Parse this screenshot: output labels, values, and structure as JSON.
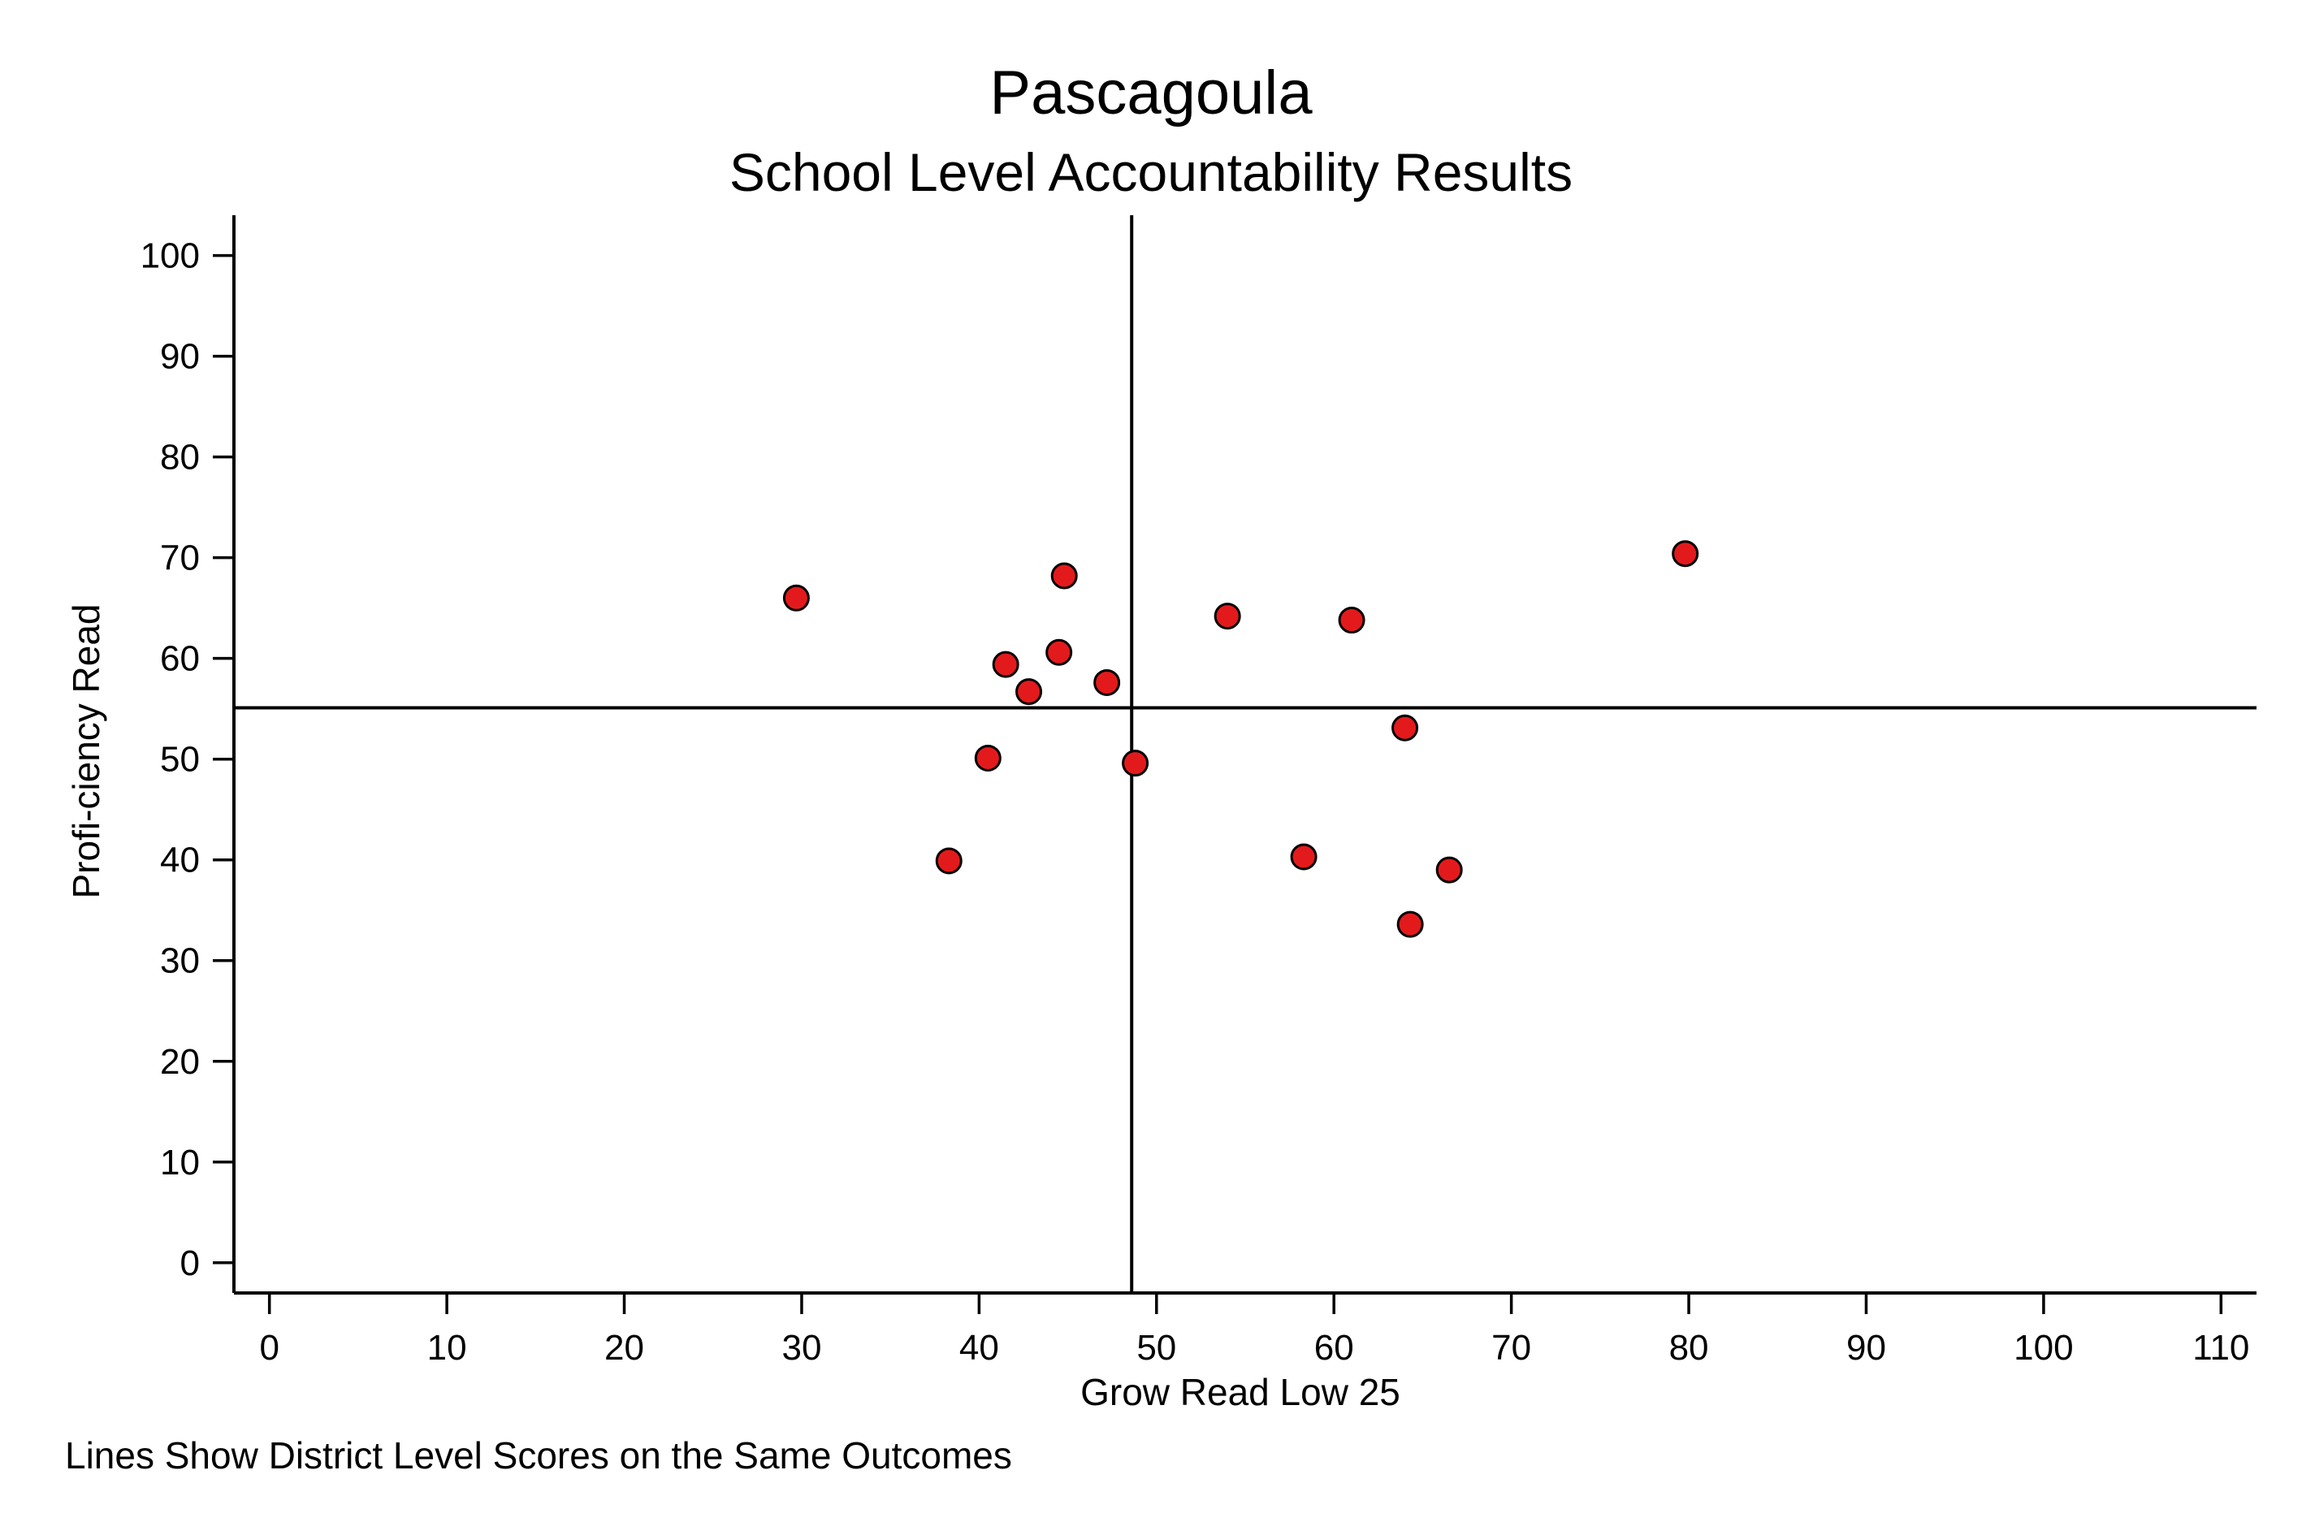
{
  "chart_data": {
    "type": "scatter",
    "title": "Pascagoula",
    "subtitle": "School Level Accountability Results",
    "xlabel": "Grow Read Low 25",
    "ylabel": "Profi-ciency Read",
    "note": "Lines Show District Level Scores on the Same Outcomes",
    "xlim": [
      -2,
      112
    ],
    "ylim": [
      -3,
      104
    ],
    "xticks": [
      0,
      10,
      20,
      30,
      40,
      50,
      60,
      70,
      80,
      90,
      100,
      110
    ],
    "yticks": [
      0,
      10,
      20,
      30,
      40,
      50,
      60,
      70,
      80,
      90,
      100
    ],
    "grid": false,
    "reference_lines": {
      "x": 48.6,
      "y": 55.1
    },
    "marker_color": "#e31a1c",
    "marker_edge_color": "#000000",
    "points": [
      {
        "x": 29.7,
        "y": 66.0
      },
      {
        "x": 38.3,
        "y": 39.9
      },
      {
        "x": 40.5,
        "y": 50.1
      },
      {
        "x": 41.5,
        "y": 59.4
      },
      {
        "x": 42.8,
        "y": 56.7
      },
      {
        "x": 44.5,
        "y": 60.6
      },
      {
        "x": 44.8,
        "y": 68.2
      },
      {
        "x": 47.2,
        "y": 57.6
      },
      {
        "x": 48.8,
        "y": 49.6
      },
      {
        "x": 54.0,
        "y": 64.2
      },
      {
        "x": 58.3,
        "y": 40.3
      },
      {
        "x": 61.0,
        "y": 63.8
      },
      {
        "x": 64.0,
        "y": 53.1
      },
      {
        "x": 64.3,
        "y": 33.6
      },
      {
        "x": 66.5,
        "y": 39.0
      },
      {
        "x": 79.8,
        "y": 70.4
      }
    ]
  }
}
